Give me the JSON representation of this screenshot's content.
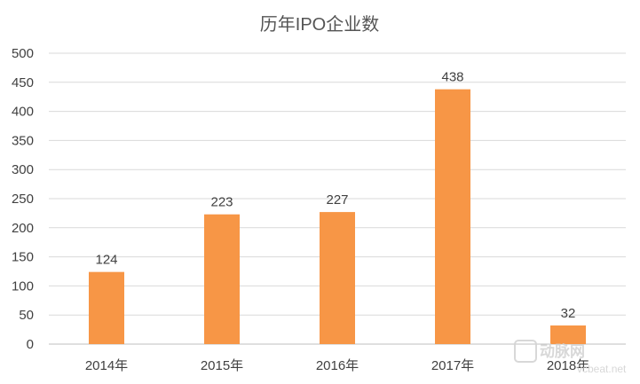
{
  "chart_data": {
    "type": "bar",
    "title": "历年IPO企业数",
    "categories": [
      "2014年",
      "2015年",
      "2016年",
      "2017年",
      "2018年"
    ],
    "values": [
      124,
      223,
      227,
      438,
      32
    ],
    "ylim": [
      0,
      500
    ],
    "yticks": [
      0,
      50,
      100,
      150,
      200,
      250,
      300,
      350,
      400,
      450,
      500
    ],
    "grid": true,
    "legend": "none",
    "bar_color": "#F79646"
  },
  "watermark": {
    "text": "动脉网",
    "subtext": "vcbeat.net"
  }
}
